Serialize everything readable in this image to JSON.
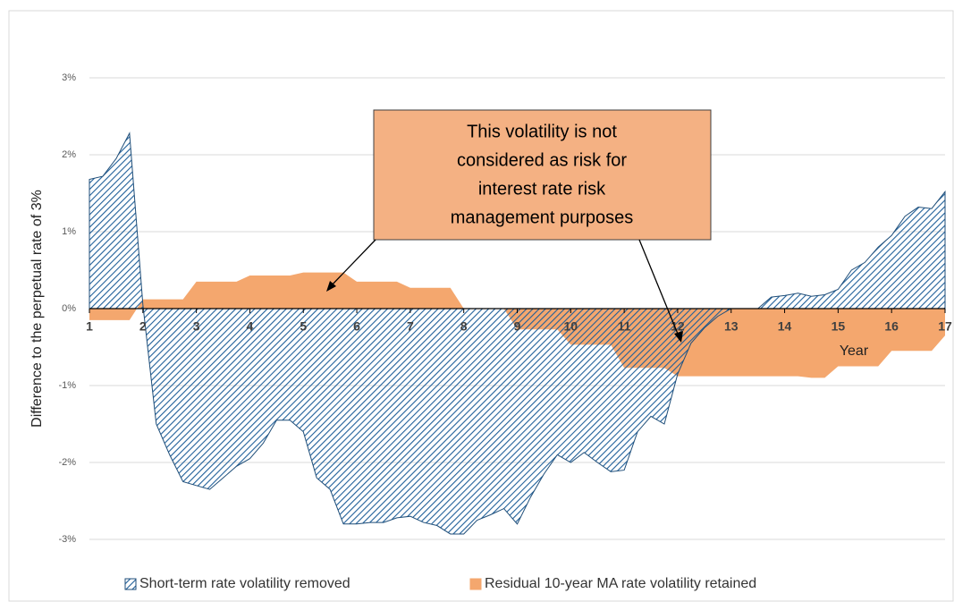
{
  "chart_data": {
    "type": "area",
    "x": [
      1,
      1.25,
      1.5,
      1.75,
      2,
      2.25,
      2.5,
      2.75,
      3,
      3.25,
      3.5,
      3.75,
      4,
      4.25,
      4.5,
      4.75,
      5,
      5.25,
      5.5,
      5.75,
      6,
      6.25,
      6.5,
      6.75,
      7,
      7.25,
      7.5,
      7.75,
      8,
      8.25,
      8.5,
      8.75,
      9,
      9.25,
      9.5,
      9.75,
      10,
      10.25,
      10.5,
      10.75,
      11,
      11.25,
      11.5,
      11.75,
      12,
      12.25,
      12.5,
      12.75,
      13,
      13.25,
      13.5,
      13.75,
      14,
      14.25,
      14.5,
      14.75,
      15,
      15.25,
      15.5,
      15.75,
      16,
      16.25,
      16.5,
      16.75,
      17
    ],
    "series": [
      {
        "name": "Residual 10-year MA rate volatility retained",
        "color": "#f4a76e",
        "values": [
          -0.15,
          -0.15,
          -0.15,
          -0.15,
          0.12,
          0.12,
          0.12,
          0.12,
          0.35,
          0.35,
          0.35,
          0.35,
          0.43,
          0.43,
          0.43,
          0.43,
          0.47,
          0.47,
          0.47,
          0.47,
          0.35,
          0.35,
          0.35,
          0.35,
          0.27,
          0.27,
          0.27,
          0.27,
          0,
          0,
          0,
          0,
          -0.27,
          -0.27,
          -0.27,
          -0.27,
          -0.47,
          -0.47,
          -0.47,
          -0.47,
          -0.77,
          -0.77,
          -0.77,
          -0.77,
          -0.88,
          -0.88,
          -0.88,
          -0.88,
          -0.88,
          -0.88,
          -0.88,
          -0.88,
          -0.88,
          -0.88,
          -0.9,
          -0.9,
          -0.75,
          -0.75,
          -0.75,
          -0.75,
          -0.55,
          -0.55,
          -0.55,
          -0.55,
          -0.35
        ]
      },
      {
        "name": "Short-term rate volatility removed",
        "color": "#2e75b6",
        "values": [
          1.68,
          1.72,
          1.95,
          2.28,
          0.05,
          -1.5,
          -1.9,
          -2.25,
          -2.3,
          -2.35,
          -2.2,
          -2.05,
          -1.95,
          -1.75,
          -1.45,
          -1.45,
          -1.6,
          -2.2,
          -2.35,
          -2.8,
          -2.8,
          -2.78,
          -2.78,
          -2.72,
          -2.7,
          -2.78,
          -2.82,
          -2.93,
          -2.93,
          -2.75,
          -2.68,
          -2.6,
          -2.8,
          -2.45,
          -2.15,
          -1.9,
          -2.0,
          -1.87,
          -2.0,
          -2.12,
          -2.1,
          -1.6,
          -1.4,
          -1.5,
          -0.85,
          -0.45,
          -0.25,
          -0.1,
          0,
          0,
          0,
          0.15,
          0.17,
          0.2,
          0.16,
          0.18,
          0.25,
          0.5,
          0.6,
          0.8,
          0.95,
          1.2,
          1.32,
          1.3,
          1.52
        ]
      }
    ],
    "xlim": [
      1,
      17
    ],
    "xticks": [
      1,
      2,
      3,
      4,
      5,
      6,
      7,
      8,
      9,
      10,
      11,
      12,
      13,
      14,
      15,
      16,
      17
    ],
    "ylim": [
      -3,
      3
    ],
    "yticks": [
      {
        "value": -3,
        "label": "-3%"
      },
      {
        "value": -2,
        "label": "-2%"
      },
      {
        "value": -1,
        "label": "-1%"
      },
      {
        "value": 0,
        "label": "0%"
      },
      {
        "value": 1,
        "label": "1%"
      },
      {
        "value": 2,
        "label": "2%"
      },
      {
        "value": 3,
        "label": "3%"
      }
    ],
    "xlabel": "Year",
    "ylabel": "Difference to the perpetual rate of 3%",
    "annotation": {
      "lines": [
        "This volatility is not",
        "considered as risk for",
        "interest rate risk",
        "management purposes"
      ]
    },
    "legend": "bottom",
    "grid": true
  }
}
